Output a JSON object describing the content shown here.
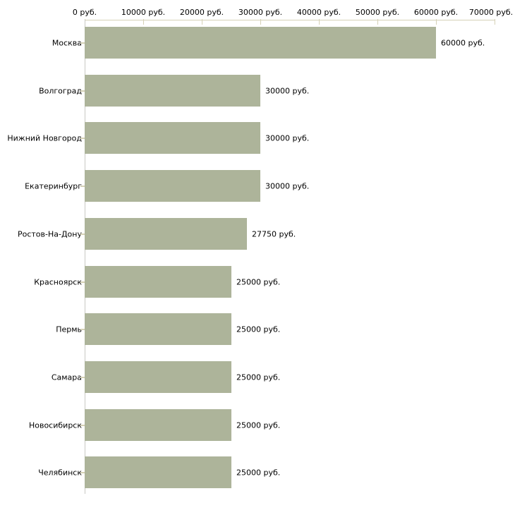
{
  "colors": {
    "bar": "#adb49a",
    "x_axis": "#d5d1b6",
    "y_axis": "#c8c8c3",
    "text": "#000000",
    "background": "#ffffff"
  },
  "x_axis": {
    "tick_labels": [
      "0 руб.",
      "10000 руб.",
      "20000 руб.",
      "30000 руб.",
      "40000 руб.",
      "50000 руб.",
      "60000 руб.",
      "70000 руб."
    ],
    "tick_values": [
      0,
      10000,
      20000,
      30000,
      40000,
      50000,
      60000,
      70000
    ]
  },
  "chart_data": {
    "type": "bar",
    "orientation": "horizontal",
    "categories": [
      "Москва",
      "Волгоград",
      "Нижний Новгород",
      "Екатеринбург",
      "Ростов-На-Дону",
      "Красноярск",
      "Пермь",
      "Самара",
      "Новосибирск",
      "Челябинск"
    ],
    "values": [
      60000,
      30000,
      30000,
      30000,
      27750,
      25000,
      25000,
      25000,
      25000,
      25000
    ],
    "value_labels": [
      "60000 руб.",
      "30000 руб.",
      "30000 руб.",
      "30000 руб.",
      "27750 руб.",
      "25000 руб.",
      "25000 руб.",
      "25000 руб.",
      "25000 руб.",
      "25000 руб."
    ],
    "unit": "руб.",
    "xlim": [
      0,
      70000
    ],
    "grid": false,
    "legend": false
  }
}
